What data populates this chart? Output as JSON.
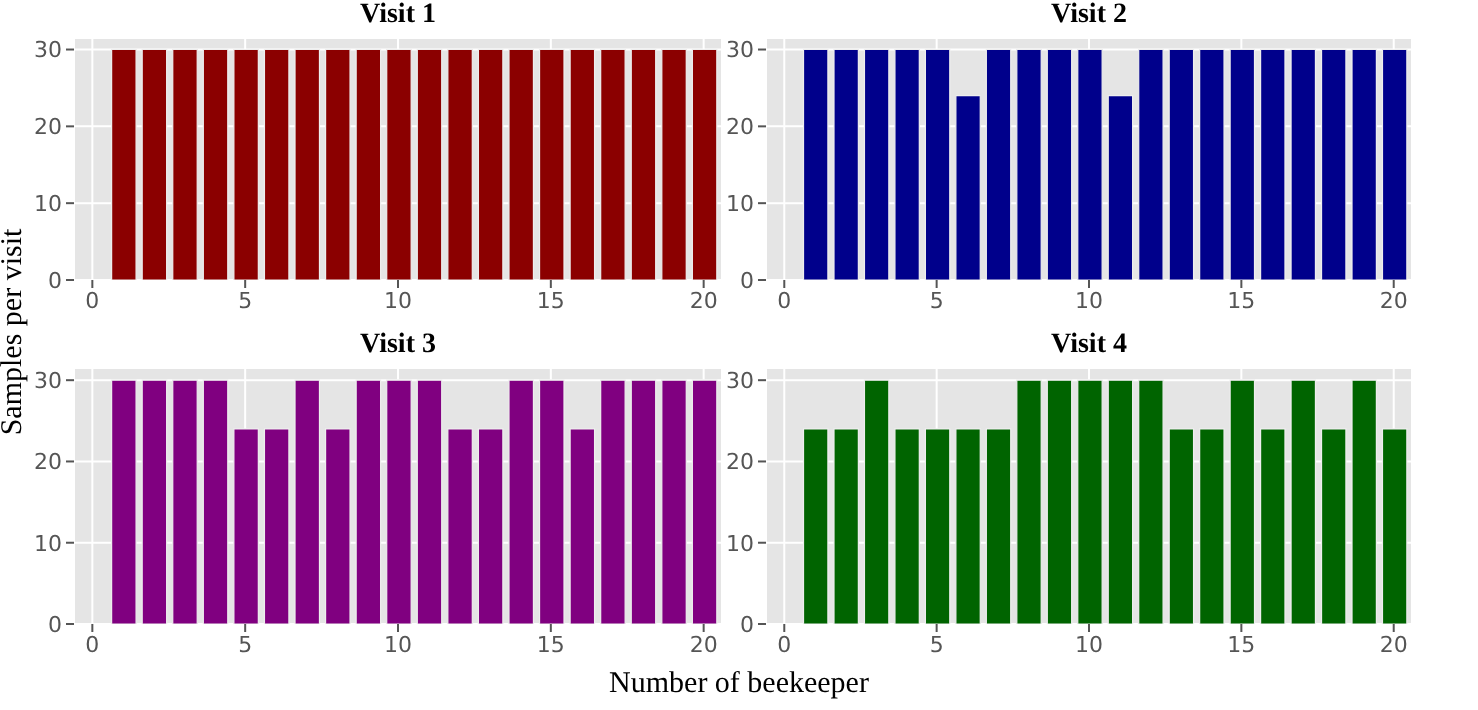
{
  "chart_data": [
    {
      "type": "bar",
      "title": "Visit 1",
      "ylabel": "Samples per visit",
      "x": [
        1,
        2,
        3,
        4,
        5,
        6,
        7,
        8,
        9,
        10,
        11,
        12,
        13,
        14,
        15,
        16,
        17,
        18,
        19,
        20
      ],
      "values": [
        30,
        30,
        30,
        30,
        30,
        30,
        30,
        30,
        30,
        30,
        30,
        30,
        30,
        30,
        30,
        30,
        30,
        30,
        30,
        30
      ],
      "color": "#8b0000",
      "xlim": [
        -0.6,
        20.6
      ],
      "xticks": [
        0,
        5,
        10,
        15,
        20
      ],
      "ylim": [
        0,
        31.5
      ],
      "yticks": [
        0,
        10,
        20,
        30
      ],
      "grid": true
    },
    {
      "type": "bar",
      "title": "Visit 2",
      "x": [
        1,
        2,
        3,
        4,
        5,
        6,
        7,
        8,
        9,
        10,
        11,
        12,
        13,
        14,
        15,
        16,
        17,
        18,
        19,
        20
      ],
      "values": [
        30,
        30,
        30,
        30,
        30,
        24,
        30,
        30,
        30,
        30,
        24,
        30,
        30,
        30,
        30,
        30,
        30,
        30,
        30,
        30
      ],
      "color": "#00008b",
      "xlim": [
        -0.6,
        20.6
      ],
      "xticks": [
        0,
        5,
        10,
        15,
        20
      ],
      "ylim": [
        0,
        31.5
      ],
      "yticks": [
        0,
        10,
        20,
        30
      ],
      "grid": true
    },
    {
      "type": "bar",
      "title": "Visit 3",
      "x": [
        1,
        2,
        3,
        4,
        5,
        6,
        7,
        8,
        9,
        10,
        11,
        12,
        13,
        14,
        15,
        16,
        17,
        18,
        19,
        20
      ],
      "values": [
        30,
        30,
        30,
        30,
        24,
        24,
        30,
        24,
        30,
        30,
        30,
        24,
        24,
        30,
        30,
        24,
        30,
        30,
        30,
        30
      ],
      "color": "#800080",
      "xlim": [
        -0.6,
        20.6
      ],
      "xticks": [
        0,
        5,
        10,
        15,
        20
      ],
      "ylim": [
        0,
        31.5
      ],
      "yticks": [
        0,
        10,
        20,
        30
      ],
      "grid": true
    },
    {
      "type": "bar",
      "title": "Visit 4",
      "xlabel": "Number of beekeeper",
      "x": [
        1,
        2,
        3,
        4,
        5,
        6,
        7,
        8,
        9,
        10,
        11,
        12,
        13,
        14,
        15,
        16,
        17,
        18,
        19,
        20
      ],
      "values": [
        24,
        24,
        30,
        24,
        24,
        24,
        24,
        30,
        30,
        30,
        30,
        30,
        24,
        24,
        30,
        24,
        30,
        24,
        30,
        24
      ],
      "color": "#006400",
      "xlim": [
        -0.6,
        20.6
      ],
      "xticks": [
        0,
        5,
        10,
        15,
        20
      ],
      "ylim": [
        0,
        31.5
      ],
      "yticks": [
        0,
        10,
        20,
        30
      ],
      "grid": true
    }
  ]
}
